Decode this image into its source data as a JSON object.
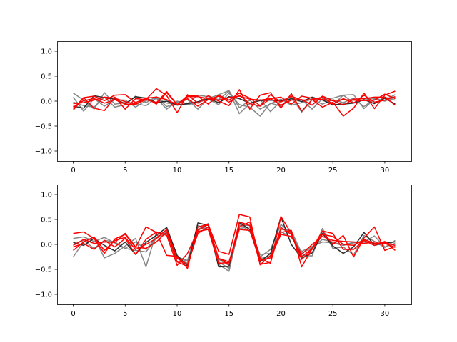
{
  "chart_data": [
    {
      "type": "line",
      "title": "",
      "xlabel": "",
      "ylabel": "",
      "xlim": [
        -1.55,
        32.55
      ],
      "ylim": [
        -1.2,
        1.2
      ],
      "xticks": [
        0,
        5,
        10,
        15,
        20,
        25,
        30
      ],
      "yticks": [
        -1.0,
        -0.5,
        0.0,
        0.5,
        1.0
      ],
      "grid": false,
      "x": [
        0,
        1,
        2,
        3,
        4,
        5,
        6,
        7,
        8,
        9,
        10,
        11,
        12,
        13,
        14,
        15,
        16,
        17,
        18,
        19,
        20,
        21,
        22,
        23,
        24,
        25,
        26,
        27,
        28,
        29,
        30,
        31
      ],
      "series": [
        {
          "color": "#7f7f7f",
          "values": [
            0.16,
            0.02,
            -0.16,
            0.17,
            -0.06,
            -0.03,
            -0.05,
            -0.09,
            0.06,
            -0.16,
            0.0,
            -0.05,
            0.12,
            0.09,
            0.03,
            0.2,
            -0.25,
            -0.05,
            0.03,
            -0.21,
            0.01,
            0.09,
            -0.22,
            0.03,
            -0.06,
            0.03,
            -0.03,
            0.06,
            -0.11,
            0.05,
            0.08,
            0.02
          ]
        },
        {
          "color": "#7f7f7f",
          "values": [
            0.08,
            -0.2,
            0.05,
            -0.1,
            0.03,
            0.02,
            -0.12,
            0.01,
            0.06,
            -0.04,
            -0.06,
            -0.07,
            -0.03,
            0.04,
            -0.07,
            0.16,
            -0.07,
            -0.12,
            -0.3,
            -0.04,
            -0.1,
            0.05,
            0.03,
            -0.16,
            0.05,
            -0.08,
            0.12,
            0.13,
            -0.15,
            0.04,
            0.02,
            0.13
          ]
        },
        {
          "color": "#7f7f7f",
          "values": [
            -0.02,
            -0.09,
            -0.12,
            0.08,
            -0.12,
            -0.07,
            0.1,
            -0.03,
            0.09,
            -0.11,
            -0.02,
            0.03,
            -0.16,
            0.05,
            0.13,
            0.21,
            -0.13,
            0.02,
            -0.16,
            -0.05,
            0.04,
            -0.08,
            -0.03,
            0.04,
            0.03,
            0.06,
            0.12,
            -0.03,
            0.02,
            0.06,
            0.0,
            0.08
          ]
        },
        {
          "color": "#222222",
          "values": [
            -0.1,
            -0.14,
            0.11,
            0.07,
            0.04,
            -0.05,
            0.09,
            0.06,
            -0.03,
            0.0,
            -0.08,
            -0.05,
            -0.01,
            0.05,
            -0.03,
            0.09,
            0.05,
            -0.04,
            0.01,
            0.02,
            0.0,
            0.05,
            -0.01,
            0.08,
            0.02,
            -0.07,
            -0.06,
            -0.04,
            0.03,
            -0.05,
            0.06,
            -0.06
          ]
        },
        {
          "color": "#ff0000",
          "values": [
            -0.18,
            0.07,
            -0.14,
            -0.19,
            0.08,
            -0.16,
            0.05,
            0.03,
            0.25,
            0.11,
            -0.23,
            0.13,
            -0.04,
            0.11,
            0.0,
            -0.09,
            0.23,
            -0.16,
            0.12,
            0.17,
            -0.14,
            0.15,
            -0.2,
            0.03,
            -0.12,
            -0.02,
            -0.3,
            -0.14,
            0.16,
            -0.15,
            0.12,
            0.2
          ]
        },
        {
          "color": "#ff0000",
          "values": [
            -0.15,
            0.07,
            0.1,
            0.01,
            0.12,
            0.13,
            -0.03,
            0.06,
            0.08,
            0.03,
            -0.07,
            0.09,
            0.09,
            0.05,
            0.02,
            0.07,
            0.1,
            0.04,
            0.02,
            0.05,
            0.08,
            -0.06,
            0.1,
            0.06,
            0.03,
            0.01,
            -0.08,
            0.04,
            0.05,
            0.08,
            0.08,
            -0.08
          ]
        },
        {
          "color": "#ff0000",
          "values": [
            -0.12,
            0.01,
            0.05,
            -0.04,
            0.03,
            -0.06,
            -0.07,
            0.07,
            -0.06,
            0.17,
            -0.07,
            0.05,
            -0.1,
            0.03,
            0.1,
            -0.02,
            0.12,
            -0.05,
            -0.1,
            0.05,
            -0.08,
            0.02,
            0.03,
            -0.08,
            0.1,
            0.01,
            0.03,
            0.02,
            0.01,
            0.02,
            0.14,
            0.05
          ]
        },
        {
          "color": "#ff0000",
          "values": [
            -0.05,
            -0.03,
            0.02,
            0.08,
            0.06,
            -0.01,
            -0.06,
            0.03,
            -0.03,
            0.19,
            -0.07,
            0.11,
            0.1,
            -0.06,
            0.12,
            0.02,
            0.16,
            0.06,
            -0.09,
            0.13,
            -0.02,
            0.1,
            0.02,
            0.03,
            0.08,
            -0.06,
            0.05,
            -0.04,
            0.12,
            -0.02,
            0.02,
            0.09
          ]
        }
      ]
    },
    {
      "type": "line",
      "title": "",
      "xlabel": "",
      "ylabel": "",
      "xlim": [
        -1.55,
        32.55
      ],
      "ylim": [
        -1.2,
        1.2
      ],
      "xticks": [
        0,
        5,
        10,
        15,
        20,
        25,
        30
      ],
      "yticks": [
        -1.0,
        -0.5,
        0.0,
        0.5,
        1.0
      ],
      "grid": false,
      "x": [
        0,
        1,
        2,
        3,
        4,
        5,
        6,
        7,
        8,
        9,
        10,
        11,
        12,
        13,
        14,
        15,
        16,
        17,
        18,
        19,
        20,
        21,
        22,
        23,
        24,
        25,
        26,
        27,
        28,
        29,
        30,
        31
      ],
      "series": [
        {
          "color": "#7f7f7f",
          "values": [
            -0.25,
            0.05,
            0.15,
            -0.27,
            -0.18,
            -0.03,
            0.12,
            -0.45,
            0.24,
            0.22,
            -0.28,
            -0.38,
            0.3,
            0.42,
            -0.4,
            -0.54,
            0.38,
            0.38,
            -0.25,
            -0.1,
            0.4,
            0.22,
            -0.22,
            -0.23,
            0.32,
            -0.08,
            -0.05,
            -0.21,
            0.18,
            0.06,
            -0.06,
            0.08
          ]
        },
        {
          "color": "#7f7f7f",
          "values": [
            0.12,
            0.15,
            0.06,
            0.14,
            0.03,
            -0.08,
            -0.12,
            -0.15,
            0.12,
            0.28,
            -0.25,
            -0.32,
            0.38,
            0.3,
            -0.3,
            -0.42,
            0.42,
            0.26,
            -0.2,
            -0.18,
            0.26,
            0.14,
            -0.14,
            -0.04,
            0.05,
            0.03,
            -0.02,
            0.05,
            0.05,
            0.17,
            -0.05,
            0.02
          ]
        },
        {
          "color": "#7f7f7f",
          "values": [
            0.0,
            0.08,
            -0.08,
            0.08,
            0.05,
            -0.08,
            0.05,
            -0.1,
            0.14,
            0.22,
            -0.26,
            -0.34,
            0.3,
            0.34,
            -0.35,
            -0.48,
            0.32,
            0.35,
            -0.28,
            -0.24,
            0.3,
            0.28,
            -0.18,
            -0.06,
            0.1,
            0.05,
            -0.02,
            0.03,
            0.05,
            0.02,
            0.02,
            -0.02
          ]
        },
        {
          "color": "#222222",
          "values": [
            0.04,
            -0.02,
            0.12,
            -0.02,
            -0.13,
            0.05,
            -0.2,
            0.04,
            0.18,
            0.34,
            -0.22,
            -0.43,
            0.43,
            0.38,
            -0.45,
            -0.44,
            0.44,
            0.3,
            -0.35,
            -0.18,
            0.55,
            0.0,
            -0.28,
            -0.17,
            0.22,
            -0.03,
            -0.18,
            -0.05,
            0.24,
            -0.02,
            0.03,
            0.05
          ]
        },
        {
          "color": "#ff0000",
          "values": [
            0.22,
            0.25,
            0.12,
            -0.18,
            0.11,
            0.2,
            -0.06,
            0.35,
            0.24,
            -0.22,
            -0.24,
            -0.48,
            0.35,
            0.4,
            -0.14,
            -0.2,
            0.6,
            0.55,
            -0.41,
            -0.22,
            0.24,
            0.28,
            -0.45,
            -0.09,
            0.26,
            0.0,
            0.18,
            -0.25,
            0.13,
            0.35,
            -0.12,
            -0.04
          ]
        },
        {
          "color": "#ff0000",
          "values": [
            -0.05,
            0.02,
            -0.1,
            0.08,
            -0.05,
            0.12,
            -0.2,
            0.1,
            0.25,
            0.18,
            -0.42,
            -0.18,
            0.28,
            0.4,
            -0.28,
            -0.35,
            0.35,
            0.45,
            -0.28,
            -0.38,
            0.56,
            0.22,
            -0.25,
            -0.08,
            0.27,
            0.22,
            -0.1,
            -0.1,
            0.08,
            -0.02,
            0.06,
            -0.12
          ]
        },
        {
          "color": "#ff0000",
          "values": [
            -0.12,
            0.05,
            0.15,
            -0.12,
            0.08,
            0.14,
            -0.1,
            0.0,
            0.12,
            0.3,
            -0.28,
            -0.4,
            0.22,
            0.35,
            -0.28,
            -0.4,
            0.45,
            0.38,
            -0.4,
            -0.36,
            0.34,
            0.2,
            -0.3,
            -0.1,
            0.2,
            0.16,
            0.0,
            -0.02,
            0.1,
            0.02,
            0.02,
            -0.06
          ]
        },
        {
          "color": "#ff0000",
          "values": [
            -0.02,
            0.1,
            0.02,
            0.05,
            0.04,
            0.22,
            -0.05,
            -0.08,
            0.05,
            0.25,
            -0.35,
            -0.44,
            0.26,
            0.3,
            -0.38,
            -0.36,
            0.3,
            0.28,
            -0.32,
            -0.27,
            0.2,
            0.16,
            -0.2,
            0.0,
            0.16,
            0.08,
            0.06,
            0.05,
            0.02,
            0.05,
            0.04,
            -0.02
          ]
        }
      ]
    }
  ]
}
